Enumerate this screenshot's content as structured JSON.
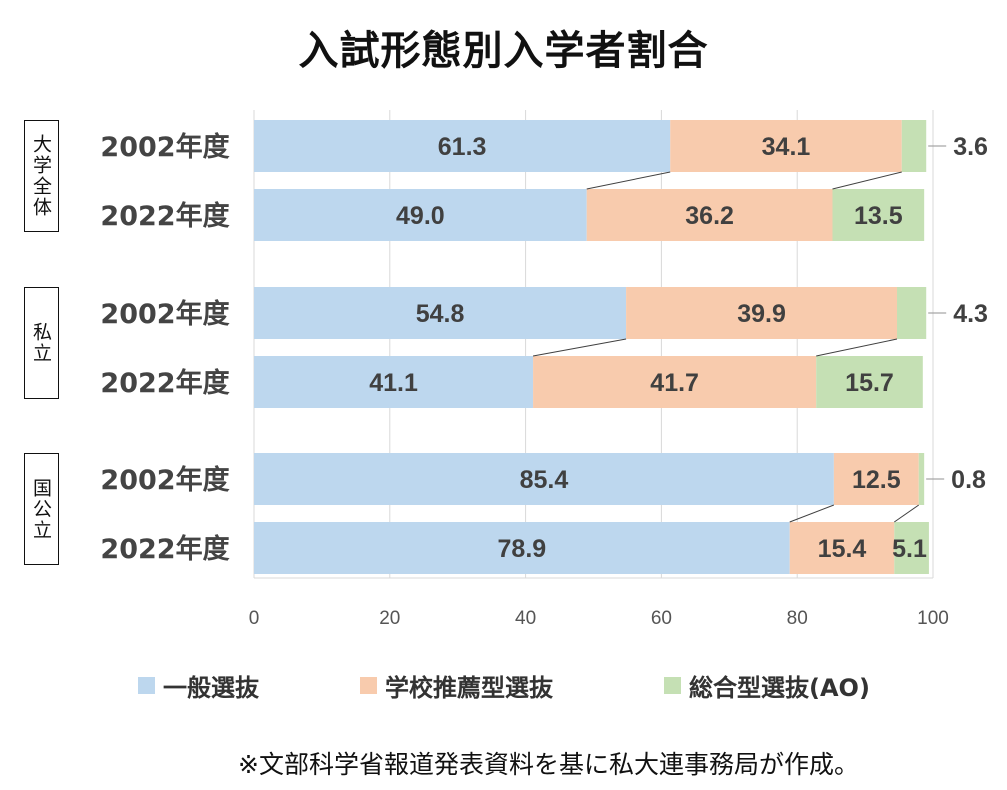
{
  "chart_data": {
    "type": "bar",
    "orientation": "horizontal",
    "stacked": true,
    "title": "入試形態別入学者割合",
    "groups": [
      {
        "label": "大学全体",
        "rows": [
          {
            "label": "2002年度",
            "values": [
              61.3,
              34.1,
              3.6
            ]
          },
          {
            "label": "2022年度",
            "values": [
              49.0,
              36.2,
              13.5
            ]
          }
        ]
      },
      {
        "label": "私立",
        "rows": [
          {
            "label": "2002年度",
            "values": [
              54.8,
              39.9,
              4.3
            ]
          },
          {
            "label": "2022年度",
            "values": [
              41.1,
              41.7,
              15.7
            ]
          }
        ]
      },
      {
        "label": "国公立",
        "rows": [
          {
            "label": "2002年度",
            "values": [
              85.4,
              12.5,
              0.8
            ]
          },
          {
            "label": "2022年度",
            "values": [
              78.9,
              15.4,
              5.1
            ]
          }
        ]
      }
    ],
    "series": [
      {
        "name": "一般選抜",
        "color": "#bdd7ee"
      },
      {
        "name": "学校推薦型選抜",
        "color": "#f8cbad"
      },
      {
        "name": "総合型選抜(AO)",
        "color": "#c5e0b4"
      }
    ],
    "xlim": [
      0,
      100
    ],
    "xticks": [
      "0",
      "20",
      "40",
      "60",
      "80",
      "100"
    ],
    "grid": true,
    "legend_position": "bottom"
  },
  "footnote": "※文部科学省報道発表資料を基に私大連事務局が作成。"
}
